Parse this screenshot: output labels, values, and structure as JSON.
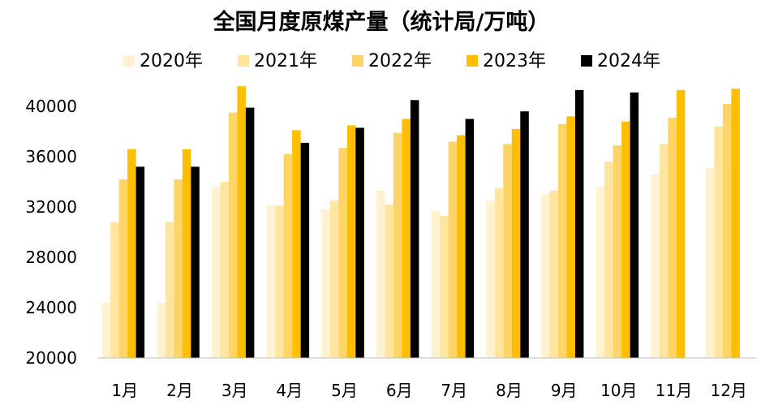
{
  "chart_data": {
    "type": "bar",
    "title": "全国月度原煤产量（统计局/万吨）",
    "categories": [
      "1月",
      "2月",
      "3月",
      "4月",
      "5月",
      "6月",
      "7月",
      "8月",
      "9月",
      "10月",
      "11月",
      "12月"
    ],
    "series": [
      {
        "name": "2020年",
        "color": "#FFF2D0",
        "values": [
          24400,
          24400,
          33600,
          32100,
          31800,
          33300,
          31700,
          32500,
          33000,
          33600,
          34600,
          35100
        ]
      },
      {
        "name": "2021年",
        "color": "#FFE59E",
        "values": [
          30800,
          30800,
          34000,
          32100,
          32500,
          32200,
          31300,
          33500,
          33300,
          35600,
          37000,
          38400
        ]
      },
      {
        "name": "2022年",
        "color": "#FFD466",
        "values": [
          34200,
          34200,
          39500,
          36200,
          36700,
          37900,
          37200,
          37000,
          38600,
          36900,
          39100,
          40200
        ]
      },
      {
        "name": "2023年",
        "color": "#FFBF00",
        "values": [
          36600,
          36600,
          41600,
          38100,
          38500,
          39000,
          37700,
          38200,
          39200,
          38800,
          41300,
          41400
        ]
      },
      {
        "name": "2024年",
        "color": "#000000",
        "values": [
          35200,
          35200,
          39900,
          37100,
          38300,
          40500,
          39000,
          39600,
          41300,
          41100,
          null,
          null
        ]
      }
    ],
    "ylim": [
      20000,
      42000
    ],
    "yticks": [
      20000,
      24000,
      28000,
      32000,
      36000,
      40000
    ],
    "ytick_labels": [
      "20000",
      "24000",
      "28000",
      "32000",
      "36000",
      "40000"
    ],
    "legend_position": "top"
  }
}
